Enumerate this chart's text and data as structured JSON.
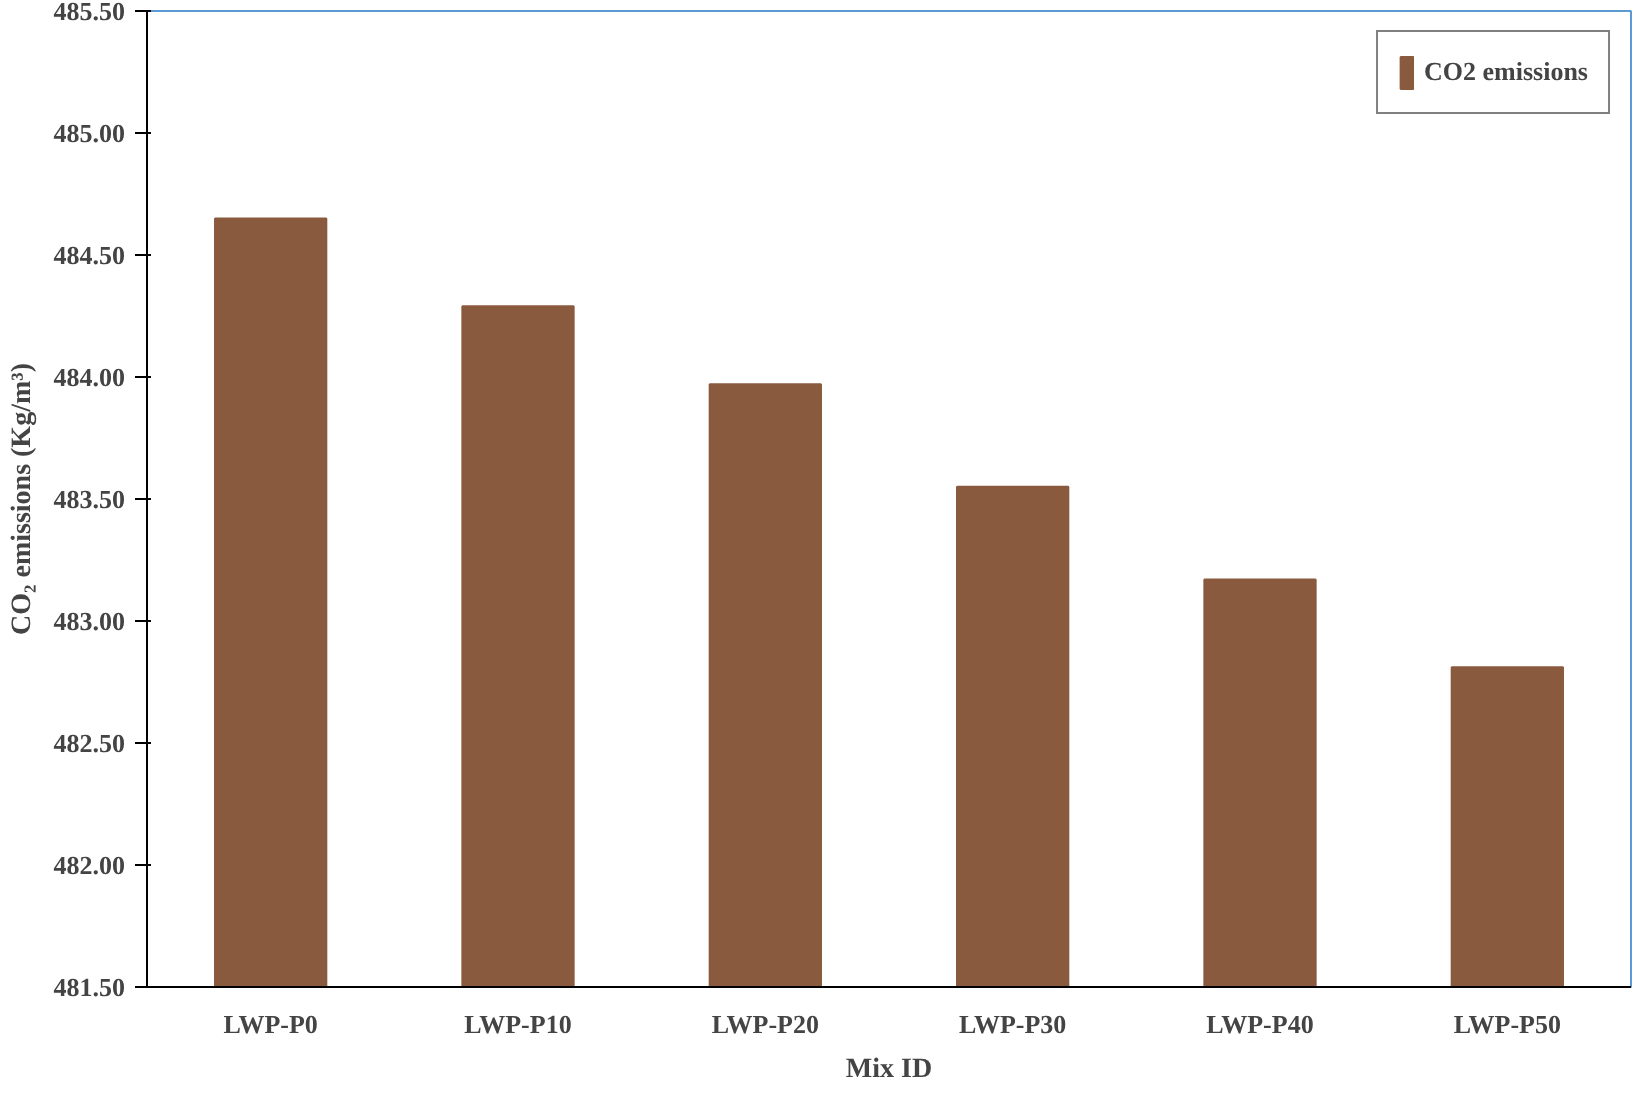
{
  "chart_data": {
    "type": "bar",
    "xlabel": "Mix ID",
    "ylabel": "CO₂ emissions (Kg/m³)",
    "categories": [
      "LWP-P0",
      "LWP-P10",
      "LWP-P20",
      "LWP-P30",
      "LWP-P40",
      "LWP-P50"
    ],
    "series": [
      {
        "name": "CO2 emissions",
        "color": "#8a5a3e",
        "values": [
          484.65,
          484.29,
          483.97,
          483.55,
          483.17,
          482.81
        ]
      }
    ],
    "ylim": [
      481.5,
      485.5
    ],
    "yticks": [
      {
        "value": 481.5,
        "label": "481.50"
      },
      {
        "value": 482,
        "label": "482.00"
      },
      {
        "value": 482.5,
        "label": "482.50"
      },
      {
        "value": 483,
        "label": "483.00"
      },
      {
        "value": 483.5,
        "label": "483.50"
      },
      {
        "value": 484,
        "label": "484.00"
      },
      {
        "value": 484.5,
        "label": "484.50"
      },
      {
        "value": 485,
        "label": "485.00"
      },
      {
        "value": 485.5,
        "label": "485.50"
      }
    ],
    "grid": false,
    "legend": "top right"
  }
}
